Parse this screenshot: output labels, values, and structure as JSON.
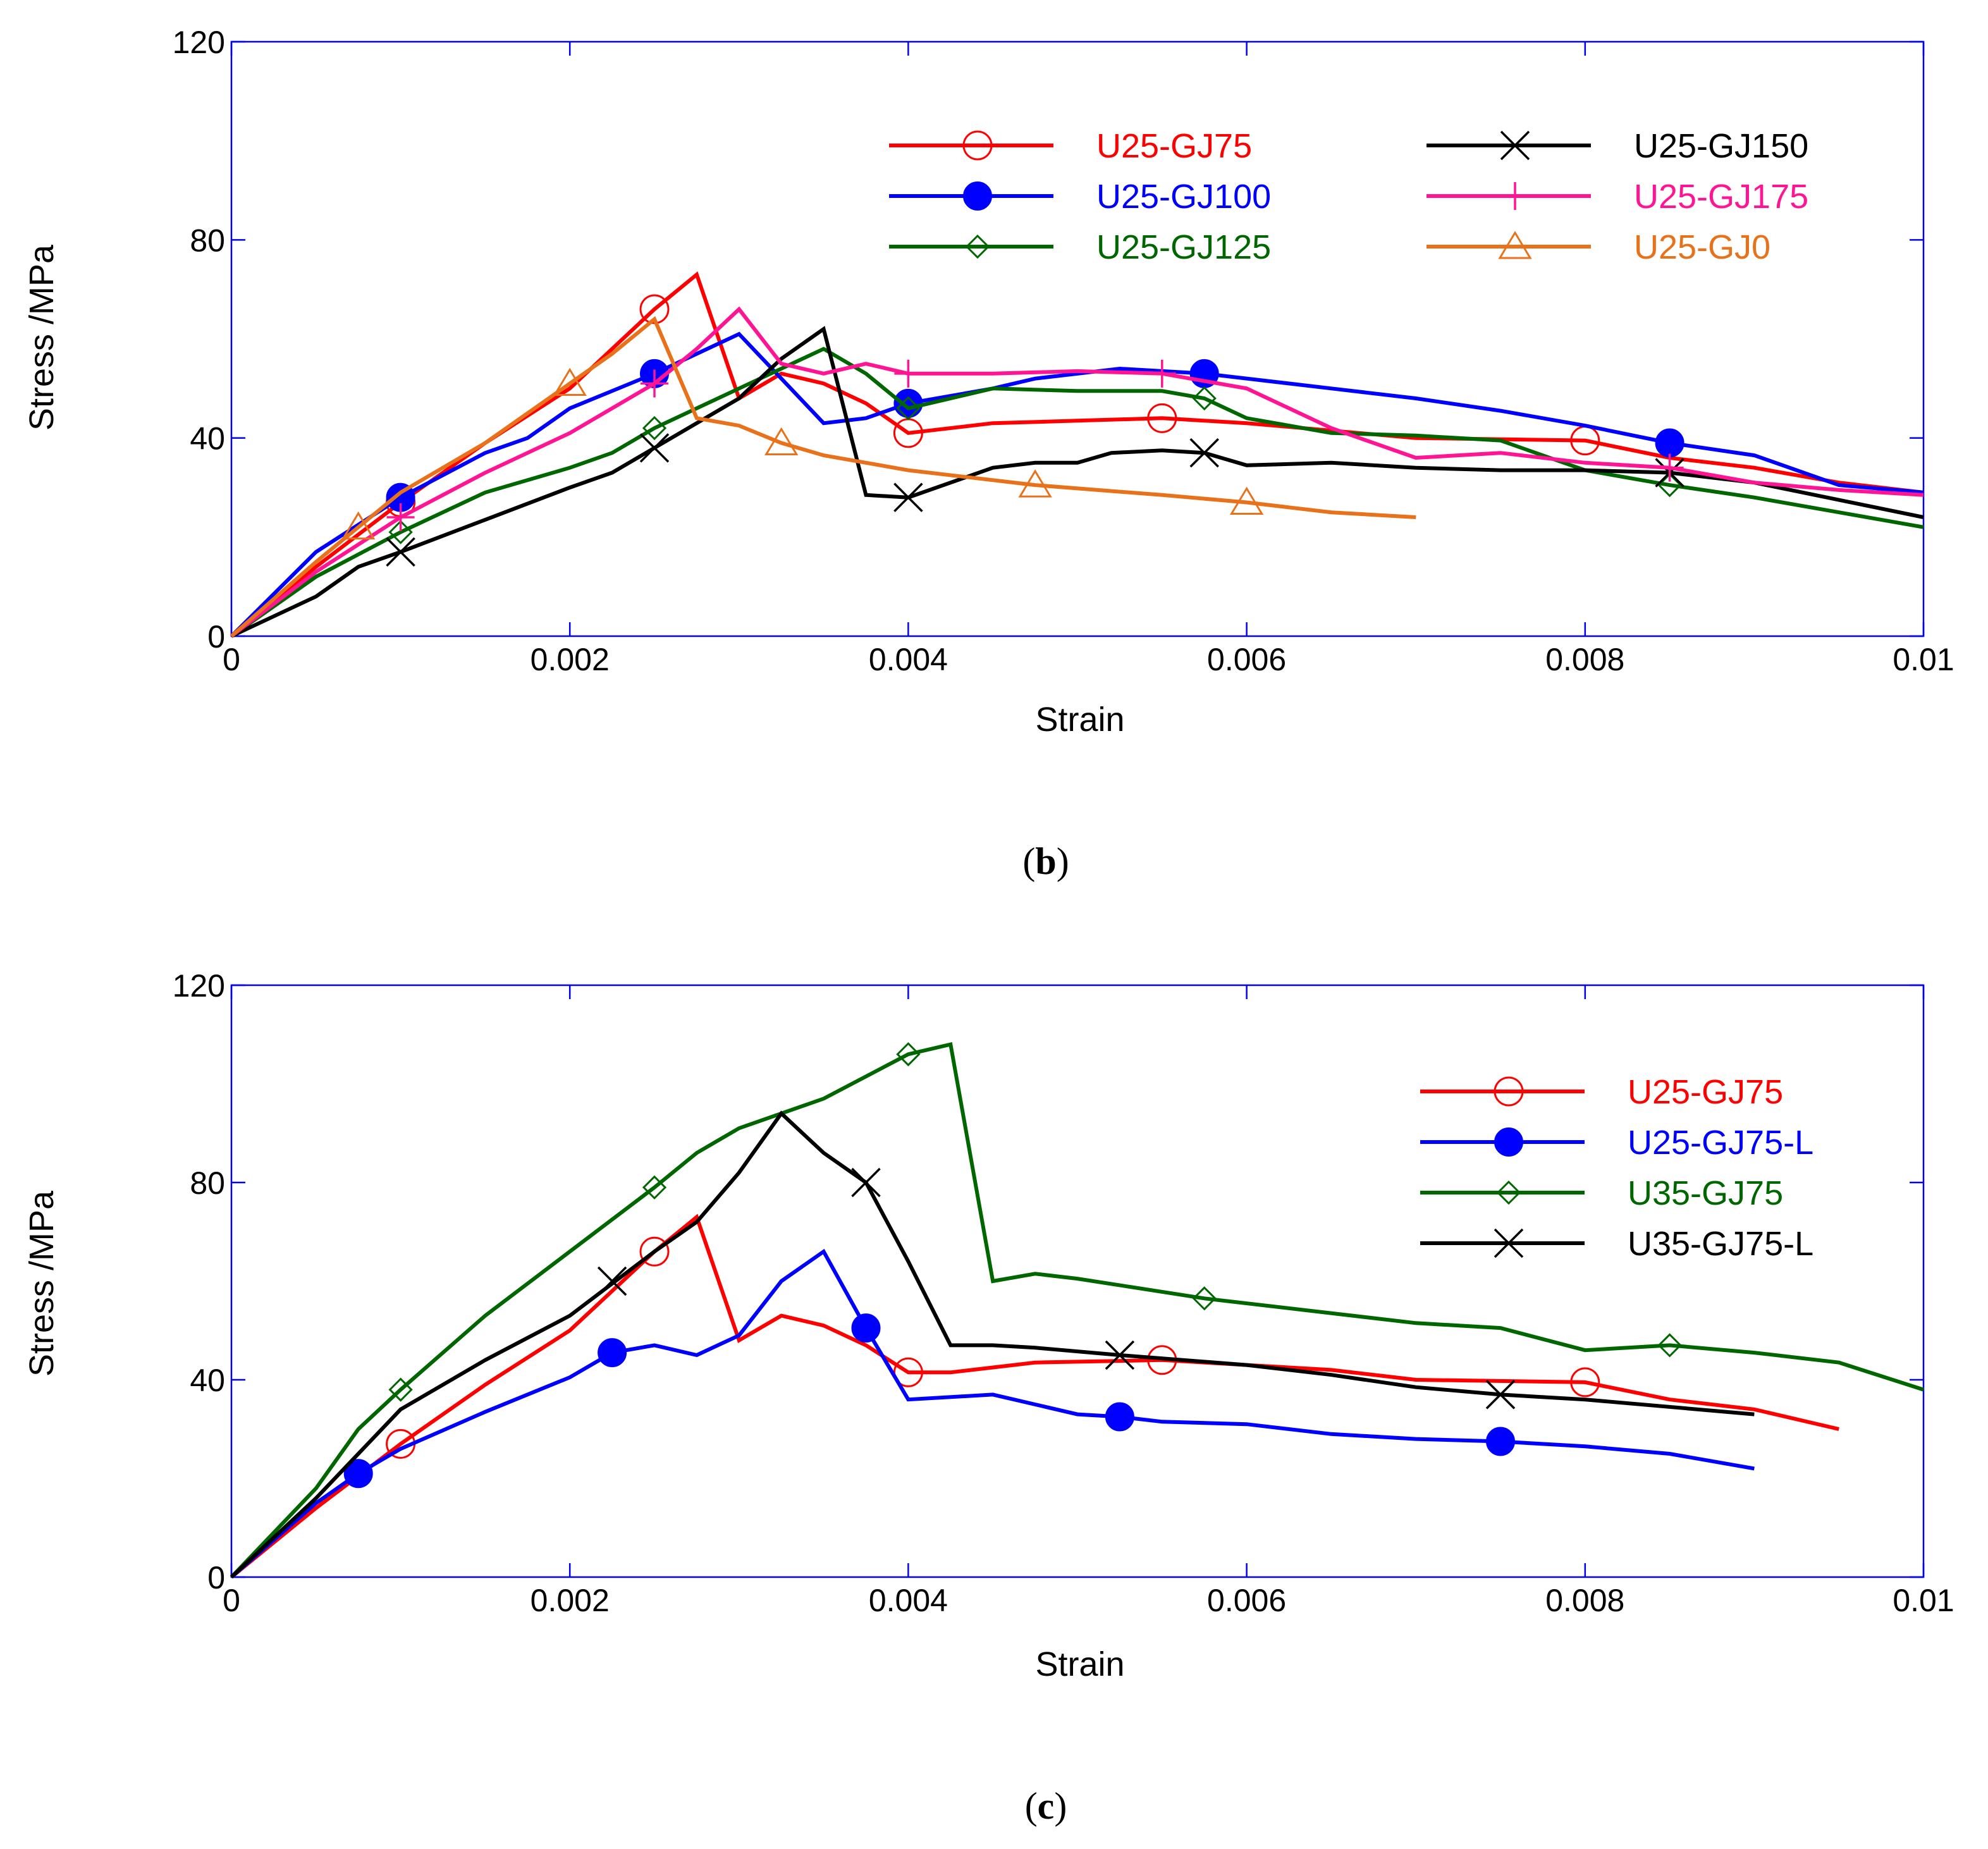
{
  "chart_data": [
    {
      "type": "line",
      "panel_label": "b",
      "xlabel": "Strain",
      "ylabel": "Stress /MPa",
      "xlim": [
        0,
        0.01
      ],
      "ylim": [
        0,
        120
      ],
      "xticks": [
        0,
        0.002,
        0.004,
        0.006,
        0.008,
        0.01
      ],
      "xtick_labels": [
        "0",
        "0.002",
        "0.004",
        "0.006",
        "0.008",
        "0.01"
      ],
      "yticks": [
        0,
        40,
        80,
        120
      ],
      "ytick_labels": [
        "0",
        "40",
        "80",
        "120"
      ],
      "grid": false,
      "legend_position": "top-right (two columns)",
      "series": [
        {
          "name": "U25-GJ75",
          "color": "#ff0000",
          "marker": "open-circle",
          "x": [
            0,
            0.0005,
            0.001,
            0.0015,
            0.002,
            0.0025,
            0.00275,
            0.003,
            0.00325,
            0.0035,
            0.00375,
            0.004,
            0.0045,
            0.005,
            0.0055,
            0.006,
            0.007,
            0.008,
            0.0085,
            0.009,
            0.0095,
            0.01
          ],
          "y": [
            0,
            14,
            27,
            39,
            50,
            66,
            73,
            48,
            53,
            51,
            47,
            41,
            43,
            43.5,
            44,
            43,
            40,
            39.5,
            36,
            34,
            31,
            29
          ],
          "markers_x": [
            0.001,
            0.0025,
            0.004,
            0.0055,
            0.008
          ],
          "markers_y": [
            27,
            66,
            41,
            44,
            39.5
          ]
        },
        {
          "name": "U25-GJ100",
          "color": "#0000ff",
          "marker": "filled-circle",
          "x": [
            0,
            0.0005,
            0.001,
            0.0015,
            0.00175,
            0.002,
            0.0025,
            0.00275,
            0.003,
            0.0035,
            0.00375,
            0.004,
            0.0045,
            0.00475,
            0.00525,
            0.00575,
            0.0065,
            0.007,
            0.0075,
            0.008,
            0.0085,
            0.009,
            0.0095,
            0.01
          ],
          "y": [
            0,
            17,
            28,
            37,
            40,
            46,
            53,
            57,
            61,
            43,
            44,
            47,
            50,
            52,
            54,
            53,
            50,
            48,
            45.5,
            42.5,
            39,
            36.5,
            30.5,
            29
          ],
          "markers_x": [
            0.001,
            0.0025,
            0.004,
            0.00575,
            0.0085
          ],
          "markers_y": [
            28,
            53,
            47,
            53,
            39
          ]
        },
        {
          "name": "U25-GJ125",
          "color": "#006600",
          "marker": "open-diamond",
          "x": [
            0,
            0.0005,
            0.001,
            0.0015,
            0.002,
            0.00225,
            0.0025,
            0.003,
            0.0035,
            0.00375,
            0.004,
            0.0045,
            0.005,
            0.0055,
            0.00575,
            0.006,
            0.0065,
            0.007,
            0.0075,
            0.008,
            0.0085,
            0.009,
            0.0095,
            0.01
          ],
          "y": [
            0,
            12,
            21,
            29,
            34,
            37,
            42,
            50,
            58,
            53,
            46,
            50,
            49.5,
            49.5,
            48,
            44,
            41,
            40.5,
            39.5,
            33.5,
            30.5,
            28,
            25,
            22
          ],
          "markers_x": [
            0.001,
            0.0025,
            0.004,
            0.00575,
            0.0085
          ],
          "markers_y": [
            21,
            42,
            46,
            48,
            30.5
          ]
        },
        {
          "name": "U25-GJ150",
          "color": "#000000",
          "marker": "cross",
          "x": [
            0,
            0.0005,
            0.00075,
            0.001,
            0.0015,
            0.002,
            0.00225,
            0.0025,
            0.003,
            0.00325,
            0.0035,
            0.00375,
            0.004,
            0.0045,
            0.00475,
            0.005,
            0.0052,
            0.0055,
            0.00575,
            0.006,
            0.0065,
            0.007,
            0.0075,
            0.008,
            0.0085,
            0.009,
            0.0095,
            0.01
          ],
          "y": [
            0,
            8,
            14,
            17,
            23.5,
            30,
            33,
            38,
            48,
            56,
            62,
            28.5,
            28,
            34,
            35,
            35,
            37,
            37.5,
            37,
            34.5,
            35,
            34,
            33.5,
            33.5,
            33,
            31,
            27.5,
            24
          ],
          "markers_x": [
            0.001,
            0.0025,
            0.004,
            0.00575,
            0.0085
          ],
          "markers_y": [
            17,
            38,
            28,
            37,
            33
          ]
        },
        {
          "name": "U25-GJ175",
          "color": "#ff1493",
          "marker": "plus",
          "x": [
            0,
            0.0005,
            0.001,
            0.0015,
            0.002,
            0.0025,
            0.00275,
            0.003,
            0.00325,
            0.0035,
            0.00375,
            0.004,
            0.0045,
            0.005,
            0.0055,
            0.006,
            0.0065,
            0.007,
            0.0075,
            0.008,
            0.0085,
            0.009,
            0.0095,
            0.01
          ],
          "y": [
            0,
            13,
            24,
            33,
            41,
            51,
            58,
            66,
            55,
            53,
            55,
            53,
            53,
            53.5,
            53,
            50,
            42,
            36,
            37,
            35,
            34,
            31,
            29.5,
            28.5
          ],
          "markers_x": [
            0.001,
            0.0025,
            0.004,
            0.0055,
            0.0085
          ],
          "markers_y": [
            24,
            51,
            53,
            53,
            34
          ]
        },
        {
          "name": "U25-GJ0",
          "color": "#e8711a",
          "marker": "open-triangle",
          "x": [
            0,
            0.0005,
            0.00075,
            0.001,
            0.0015,
            0.002,
            0.00225,
            0.0025,
            0.00275,
            0.003,
            0.00325,
            0.0035,
            0.004,
            0.00475,
            0.0055,
            0.006,
            0.0065,
            0.007
          ],
          "y": [
            0,
            15,
            22,
            29,
            39,
            51,
            57,
            64,
            44,
            42.5,
            39,
            36.5,
            33.5,
            30.5,
            28.5,
            27,
            25,
            24
          ],
          "markers_x": [
            0.00075,
            0.002,
            0.00325,
            0.00475,
            0.006
          ],
          "markers_y": [
            22,
            51,
            39,
            30.5,
            27
          ]
        }
      ]
    },
    {
      "type": "line",
      "panel_label": "c",
      "xlabel": "Strain",
      "ylabel": "Stress /MPa",
      "xlim": [
        0,
        0.01
      ],
      "ylim": [
        0,
        120
      ],
      "xticks": [
        0,
        0.002,
        0.004,
        0.006,
        0.008,
        0.01
      ],
      "xtick_labels": [
        "0",
        "0.002",
        "0.004",
        "0.006",
        "0.008",
        "0.01"
      ],
      "yticks": [
        0,
        40,
        80,
        120
      ],
      "ytick_labels": [
        "0",
        "40",
        "80",
        "120"
      ],
      "grid": false,
      "legend_position": "right",
      "series": [
        {
          "name": "U25-GJ75",
          "color": "#ff0000",
          "marker": "open-circle",
          "x": [
            0,
            0.0005,
            0.001,
            0.0015,
            0.002,
            0.0025,
            0.00275,
            0.003,
            0.00325,
            0.0035,
            0.00375,
            0.004,
            0.00425,
            0.0045,
            0.00475,
            0.0055,
            0.006,
            0.0065,
            0.007,
            0.008,
            0.0085,
            0.009,
            0.0095
          ],
          "y": [
            0,
            14,
            27,
            39,
            50,
            66,
            73,
            48,
            53,
            51,
            47,
            41.5,
            41.5,
            42.5,
            43.5,
            44,
            43,
            42,
            40,
            39.5,
            36,
            34,
            30
          ],
          "markers_x": [
            0.001,
            0.0025,
            0.004,
            0.0055,
            0.008
          ],
          "markers_y": [
            27,
            66,
            41.5,
            44,
            39.5
          ]
        },
        {
          "name": "U25-GJ75-L",
          "color": "#0000ff",
          "marker": "filled-circle",
          "x": [
            0,
            0.0005,
            0.00075,
            0.001,
            0.0015,
            0.002,
            0.00225,
            0.0025,
            0.00275,
            0.003,
            0.00325,
            0.0035,
            0.00375,
            0.004,
            0.0045,
            0.00475,
            0.005,
            0.00525,
            0.0055,
            0.006,
            0.0065,
            0.007,
            0.0075,
            0.008,
            0.0085,
            0.009
          ],
          "y": [
            0,
            15,
            21,
            26,
            33.5,
            40.5,
            45.5,
            47,
            45,
            49,
            60,
            66,
            50.5,
            36,
            37,
            35,
            33,
            32.5,
            31.5,
            31,
            29,
            28,
            27.5,
            26.5,
            25,
            22
          ],
          "markers_x": [
            0.00075,
            0.00225,
            0.00375,
            0.00525,
            0.0075
          ],
          "markers_y": [
            21,
            45.5,
            50.5,
            32.5,
            27.5
          ]
        },
        {
          "name": "U35-GJ75",
          "color": "#006600",
          "marker": "open-diamond",
          "x": [
            0,
            0.0005,
            0.00075,
            0.001,
            0.0015,
            0.002,
            0.0025,
            0.00275,
            0.003,
            0.0035,
            0.004,
            0.00425,
            0.0045,
            0.00475,
            0.005,
            0.00575,
            0.007,
            0.0075,
            0.008,
            0.0085,
            0.009,
            0.0095,
            0.01
          ],
          "y": [
            0,
            18,
            30,
            38,
            53,
            66,
            79,
            86,
            91,
            97,
            106,
            108,
            60,
            61.5,
            60.5,
            56.5,
            51.5,
            50.5,
            46,
            47,
            45.5,
            43.5,
            38
          ],
          "markers_x": [
            0.001,
            0.0025,
            0.004,
            0.00575,
            0.0085
          ],
          "markers_y": [
            38,
            79,
            106,
            56.5,
            47
          ]
        },
        {
          "name": "U35-GJ75-L",
          "color": "#000000",
          "marker": "cross",
          "x": [
            0,
            0.0005,
            0.00075,
            0.001,
            0.0015,
            0.00175,
            0.002,
            0.0025,
            0.00275,
            0.003,
            0.00325,
            0.0035,
            0.00375,
            0.004,
            0.00425,
            0.0045,
            0.00475,
            0.00525,
            0.006,
            0.0065,
            0.007,
            0.0075,
            0.008,
            0.009
          ],
          "y": [
            0,
            16,
            25,
            34,
            44,
            48.5,
            53,
            66,
            72,
            82,
            94,
            86,
            80,
            64,
            47,
            47,
            46.5,
            45,
            43,
            41,
            38.5,
            37,
            36,
            33
          ],
          "markers_x": [
            0.00225,
            0.00375,
            0.00525,
            0.0075
          ],
          "markers_y": [
            60,
            80,
            45,
            37
          ]
        }
      ]
    }
  ]
}
